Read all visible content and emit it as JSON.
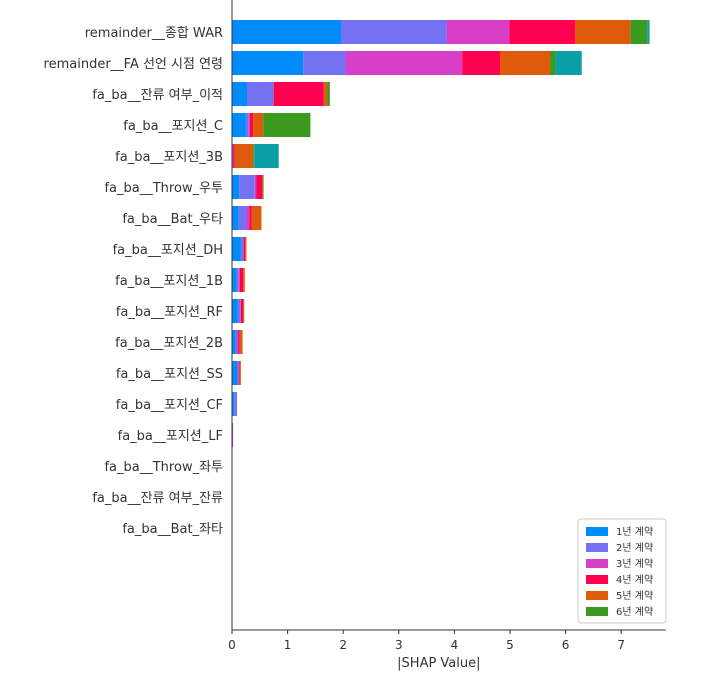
{
  "chart_data": {
    "type": "bar",
    "orientation": "horizontal",
    "stacked": true,
    "title": "",
    "xlabel": "|SHAP Value|",
    "ylabel": "",
    "xlim": [
      0,
      7.8
    ],
    "xticks": [
      "0",
      "1",
      "2",
      "3",
      "4",
      "5",
      "6",
      "7"
    ],
    "grid": false,
    "legend_position": "bottom-right",
    "categories": [
      "remainder__종합 WAR",
      "remainder__FA 선언 시점 연령",
      "fa_ba__잔류 여부_이적",
      "fa_ba__포지션_C",
      "fa_ba__포지션_3B",
      "fa_ba__Throw_우투",
      "fa_ba__Bat_우타",
      "fa_ba__포지션_DH",
      "fa_ba__포지션_1B",
      "fa_ba__포지션_RF",
      "fa_ba__포지션_2B",
      "fa_ba__포지션_SS",
      "fa_ba__포지션_CF",
      "fa_ba__포지션_LF",
      "fa_ba__Throw_좌투",
      "fa_ba__잔류 여부_잔류",
      "fa_ba__Bat_좌타"
    ],
    "series": [
      {
        "name": "1년 계약",
        "color": "#008bfb",
        "values": [
          1.96,
          1.28,
          0.27,
          0.25,
          0.0,
          0.13,
          0.12,
          0.16,
          0.08,
          0.1,
          0.07,
          0.09,
          0.04,
          0.0,
          0.0,
          0.0,
          0.0
        ]
      },
      {
        "name": "2년 계약",
        "color": "#7472f3",
        "values": [
          1.9,
          0.76,
          0.48,
          0.05,
          0.02,
          0.28,
          0.14,
          0.05,
          0.04,
          0.05,
          0.02,
          0.03,
          0.05,
          0.0,
          0.0,
          0.0,
          0.0
        ]
      },
      {
        "name": "3년 계약",
        "color": "#d63fc6",
        "values": [
          1.13,
          2.1,
          0.0,
          0.02,
          0.0,
          0.03,
          0.05,
          0.0,
          0.02,
          0.01,
          0.02,
          0.0,
          0.0,
          0.02,
          0.0,
          0.0,
          0.0
        ]
      },
      {
        "name": "4년 계약",
        "color": "#ff0051",
        "values": [
          1.18,
          0.68,
          0.9,
          0.06,
          0.03,
          0.1,
          0.04,
          0.03,
          0.06,
          0.04,
          0.03,
          0.02,
          0.0,
          0.0,
          0.0,
          0.0,
          0.0
        ]
      },
      {
        "name": "5년 계약",
        "color": "#e05a0c",
        "values": [
          1.0,
          0.9,
          0.06,
          0.18,
          0.33,
          0.02,
          0.18,
          0.02,
          0.03,
          0.02,
          0.05,
          0.02,
          0.0,
          0.0,
          0.0,
          0.0,
          0.0
        ]
      },
      {
        "name": "6년 계약",
        "color": "#3a9b1e",
        "values": [
          0.3,
          0.1,
          0.05,
          0.85,
          0.02,
          0.01,
          0.0,
          0.0,
          0.0,
          0.0,
          0.0,
          0.0,
          0.0,
          0.0,
          0.0,
          0.0,
          0.0
        ]
      },
      {
        "name": "",
        "color": "#0a9fa7",
        "values": [
          0.04,
          0.47,
          0.0,
          0.0,
          0.44,
          0.0,
          0.0,
          0.0,
          0.0,
          0.0,
          0.0,
          0.0,
          0.0,
          0.0,
          0.0,
          0.0,
          0.0
        ]
      }
    ]
  }
}
